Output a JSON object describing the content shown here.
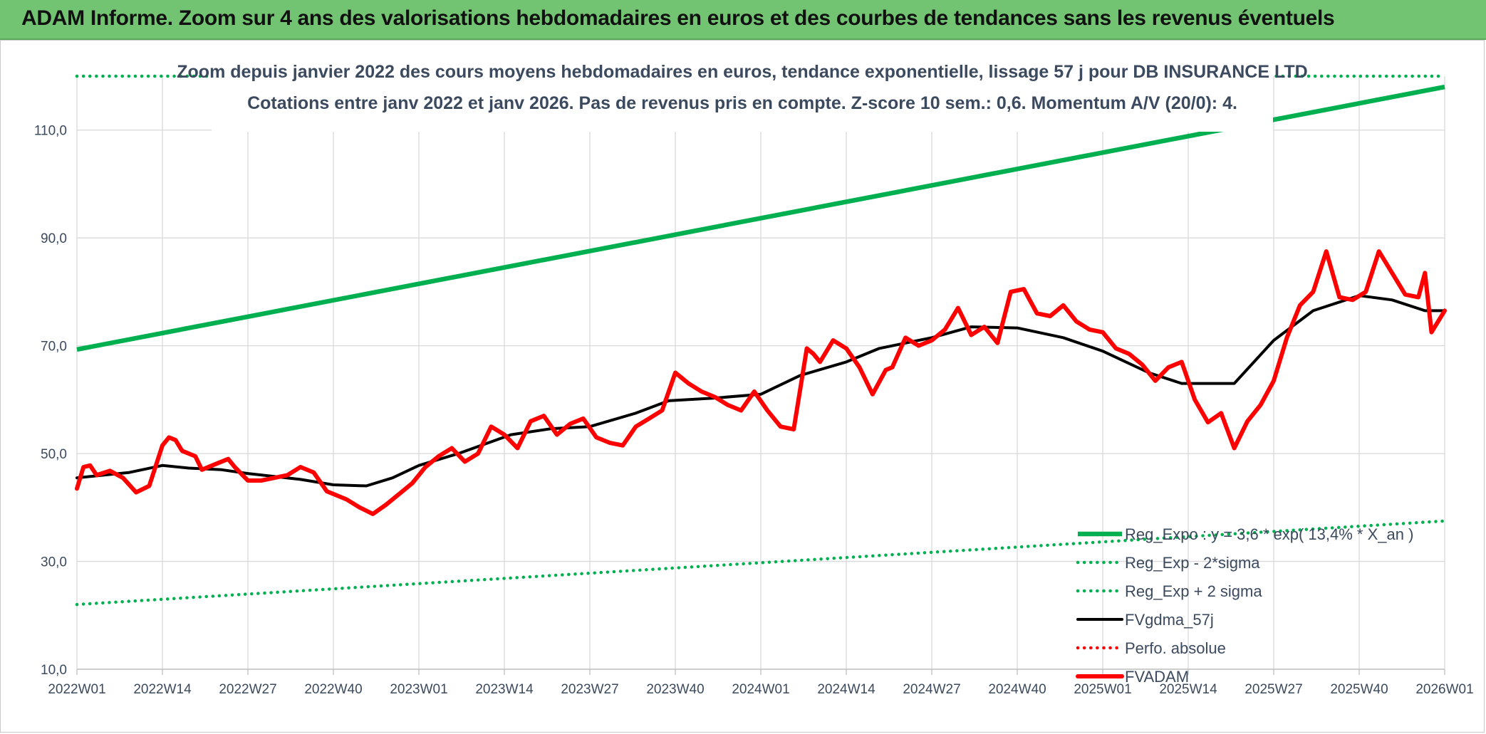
{
  "banner": {
    "title": "ADAM Informe. Zoom sur 4 ans des valorisations hebdomadaires en euros et des courbes de tendances sans les revenus éventuels"
  },
  "chart_data": {
    "type": "line",
    "title": "Zoom depuis janvier 2022 des cours moyens hebdomadaires en euros, tendance exponentielle, lissage 57 j pour DB INSURANCE LTD",
    "subtitle": "Cotations entre janv 2022 et janv 2026. Pas de revenus pris en compte. Z-score 10 sem.: 0,6. Momentum A/V (20/0): 4.",
    "xlabel": "",
    "ylabel": "",
    "x_ticks": [
      "2022W01",
      "2022W14",
      "2022W27",
      "2022W40",
      "2023W01",
      "2023W14",
      "2023W27",
      "2023W40",
      "2024W01",
      "2024W14",
      "2024W27",
      "2024W40",
      "2025W01",
      "2025W14",
      "2025W27",
      "2025W40",
      "2026W01"
    ],
    "y_ticks": [
      "10,0",
      "30,0",
      "50,0",
      "70,0",
      "90,0",
      "110,0"
    ],
    "ylim": [
      10,
      120
    ],
    "grid": true,
    "legend_position": "bottom-right",
    "series": [
      {
        "name": "Reg_Expo : y = 3,6 * exp( 13,4% *  X_an )",
        "color": "#00b050",
        "style": "solid",
        "x": [
          0,
          208
        ],
        "y": [
          69.3,
          118.0
        ]
      },
      {
        "name": "Reg_Exp - 2*sigma",
        "color": "#00b050",
        "style": "dotted",
        "x": [
          0,
          208
        ],
        "y": [
          22.0,
          37.5
        ]
      },
      {
        "name": "Reg_Exp + 2 sigma",
        "color": "#00b050",
        "style": "dotted",
        "x": [
          0,
          208
        ],
        "y": [
          120.0,
          120.0
        ]
      },
      {
        "name": "FVgdma_57j",
        "color": "#000000",
        "style": "solid",
        "x": [
          0,
          8,
          13,
          17,
          22,
          26,
          34,
          39,
          44,
          48,
          52,
          58,
          66,
          72,
          78,
          85,
          90,
          97,
          104,
          110,
          117,
          122,
          130,
          136,
          143,
          150,
          156,
          163,
          168,
          176,
          182,
          188,
          195,
          200,
          205,
          208
        ],
        "y": [
          45.5,
          46.5,
          47.8,
          47.3,
          47.0,
          46.3,
          45.2,
          44.2,
          44.0,
          45.5,
          47.8,
          50.0,
          53.5,
          54.6,
          55.0,
          57.5,
          59.8,
          60.3,
          61.0,
          64.5,
          67.0,
          69.5,
          71.5,
          73.5,
          73.3,
          71.5,
          69.0,
          65.0,
          63.0,
          63.0,
          71.0,
          76.5,
          79.3,
          78.5,
          76.5,
          76.5
        ]
      },
      {
        "name": "Perfo. absolue",
        "color": "#ff0000",
        "style": "dotted",
        "x": [],
        "y": []
      },
      {
        "name": "FVADAM",
        "color": "#ff0000",
        "style": "solid",
        "x": [
          0,
          1,
          2,
          3,
          5,
          7,
          9,
          11,
          13,
          14,
          15,
          16,
          18,
          19,
          21,
          23,
          24,
          26,
          28,
          30,
          32,
          34,
          36,
          38,
          39,
          41,
          43,
          45,
          47,
          49,
          51,
          53,
          55,
          57,
          59,
          61,
          63,
          65,
          67,
          69,
          71,
          73,
          75,
          77,
          79,
          81,
          83,
          85,
          87,
          89,
          91,
          93,
          95,
          97,
          99,
          101,
          103,
          105,
          107,
          109,
          110,
          111,
          112,
          113,
          115,
          117,
          119,
          121,
          123,
          124,
          126,
          128,
          130,
          132,
          134,
          136,
          138,
          140,
          142,
          144,
          146,
          148,
          150,
          152,
          154,
          156,
          158,
          160,
          162,
          164,
          166,
          168,
          170,
          172,
          174,
          176,
          178,
          180,
          182,
          184,
          186,
          188,
          190,
          192,
          194,
          196,
          198,
          200,
          202,
          204,
          205,
          206,
          208
        ],
        "y": [
          43.5,
          47.5,
          47.8,
          46.0,
          46.8,
          45.5,
          42.8,
          44.0,
          51.5,
          53.0,
          52.5,
          50.5,
          49.5,
          47.0,
          48.0,
          49.0,
          47.5,
          45.0,
          45.0,
          45.5,
          46.0,
          47.5,
          46.5,
          43.0,
          42.5,
          41.5,
          40.0,
          38.8,
          40.5,
          42.5,
          44.5,
          47.5,
          49.5,
          51.0,
          48.5,
          50.0,
          55.0,
          53.5,
          51.0,
          56.0,
          57.0,
          53.5,
          55.5,
          56.5,
          53.0,
          52.0,
          51.5,
          55.0,
          56.5,
          58.0,
          65.0,
          63.0,
          61.5,
          60.5,
          59.0,
          58.0,
          61.5,
          58.0,
          55.0,
          54.5,
          62.0,
          69.5,
          68.5,
          67.0,
          71.0,
          69.5,
          66.0,
          61.0,
          65.5,
          66.0,
          71.5,
          70.0,
          71.0,
          73.0,
          77.0,
          72.0,
          73.5,
          70.5,
          80.0,
          80.5,
          76.0,
          75.5,
          77.5,
          74.5,
          73.0,
          72.5,
          69.5,
          68.5,
          66.5,
          63.5,
          66.0,
          67.0,
          60.0,
          55.8,
          57.5,
          51.0,
          56.0,
          59.0,
          63.5,
          71.5,
          77.5,
          80.0,
          87.5,
          79.0,
          78.5,
          80.0,
          87.5,
          83.5,
          79.5,
          79.0,
          83.5,
          72.5,
          76.5
        ]
      }
    ]
  }
}
